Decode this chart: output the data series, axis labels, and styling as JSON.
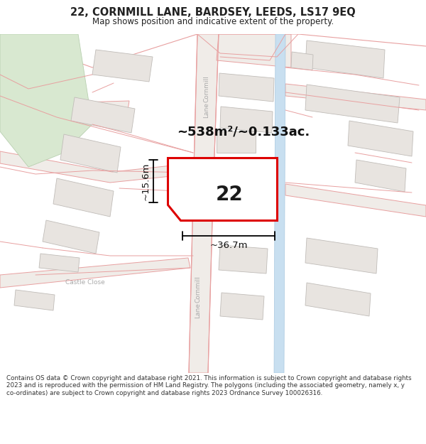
{
  "title": "22, CORNMILL LANE, BARDSEY, LEEDS, LS17 9EQ",
  "subtitle": "Map shows position and indicative extent of the property.",
  "footer": "Contains OS data © Crown copyright and database right 2021. This information is subject to Crown copyright and database rights 2023 and is reproduced with the permission of HM Land Registry. The polygons (including the associated geometry, namely x, y co-ordinates) are subject to Crown copyright and database rights 2023 Ordnance Survey 100026316.",
  "area_label": "~538m²/~0.133ac.",
  "width_label": "~36.7m",
  "height_label": "~15.6m",
  "number_label": "22",
  "map_bg": "#ffffff",
  "road_line_color": "#e8a0a0",
  "road_fill_color": "#f5f0ee",
  "highlight_color": "#dd0000",
  "blue_lane_color": "#c8dff0",
  "blue_lane_border": "#a8c8e0",
  "green_area_color": "#d8e8d0",
  "green_area_border": "#b8d0b0",
  "building_fill": "#e8e4e0",
  "building_border": "#c0bcb8",
  "text_color": "#222222",
  "road_text_color": "#aaaaaa",
  "dim_color": "#111111",
  "title_fontsize": 10.5,
  "subtitle_fontsize": 8.5,
  "area_fontsize": 13,
  "number_fontsize": 20,
  "dim_fontsize": 9.5,
  "footer_fontsize": 6.3
}
